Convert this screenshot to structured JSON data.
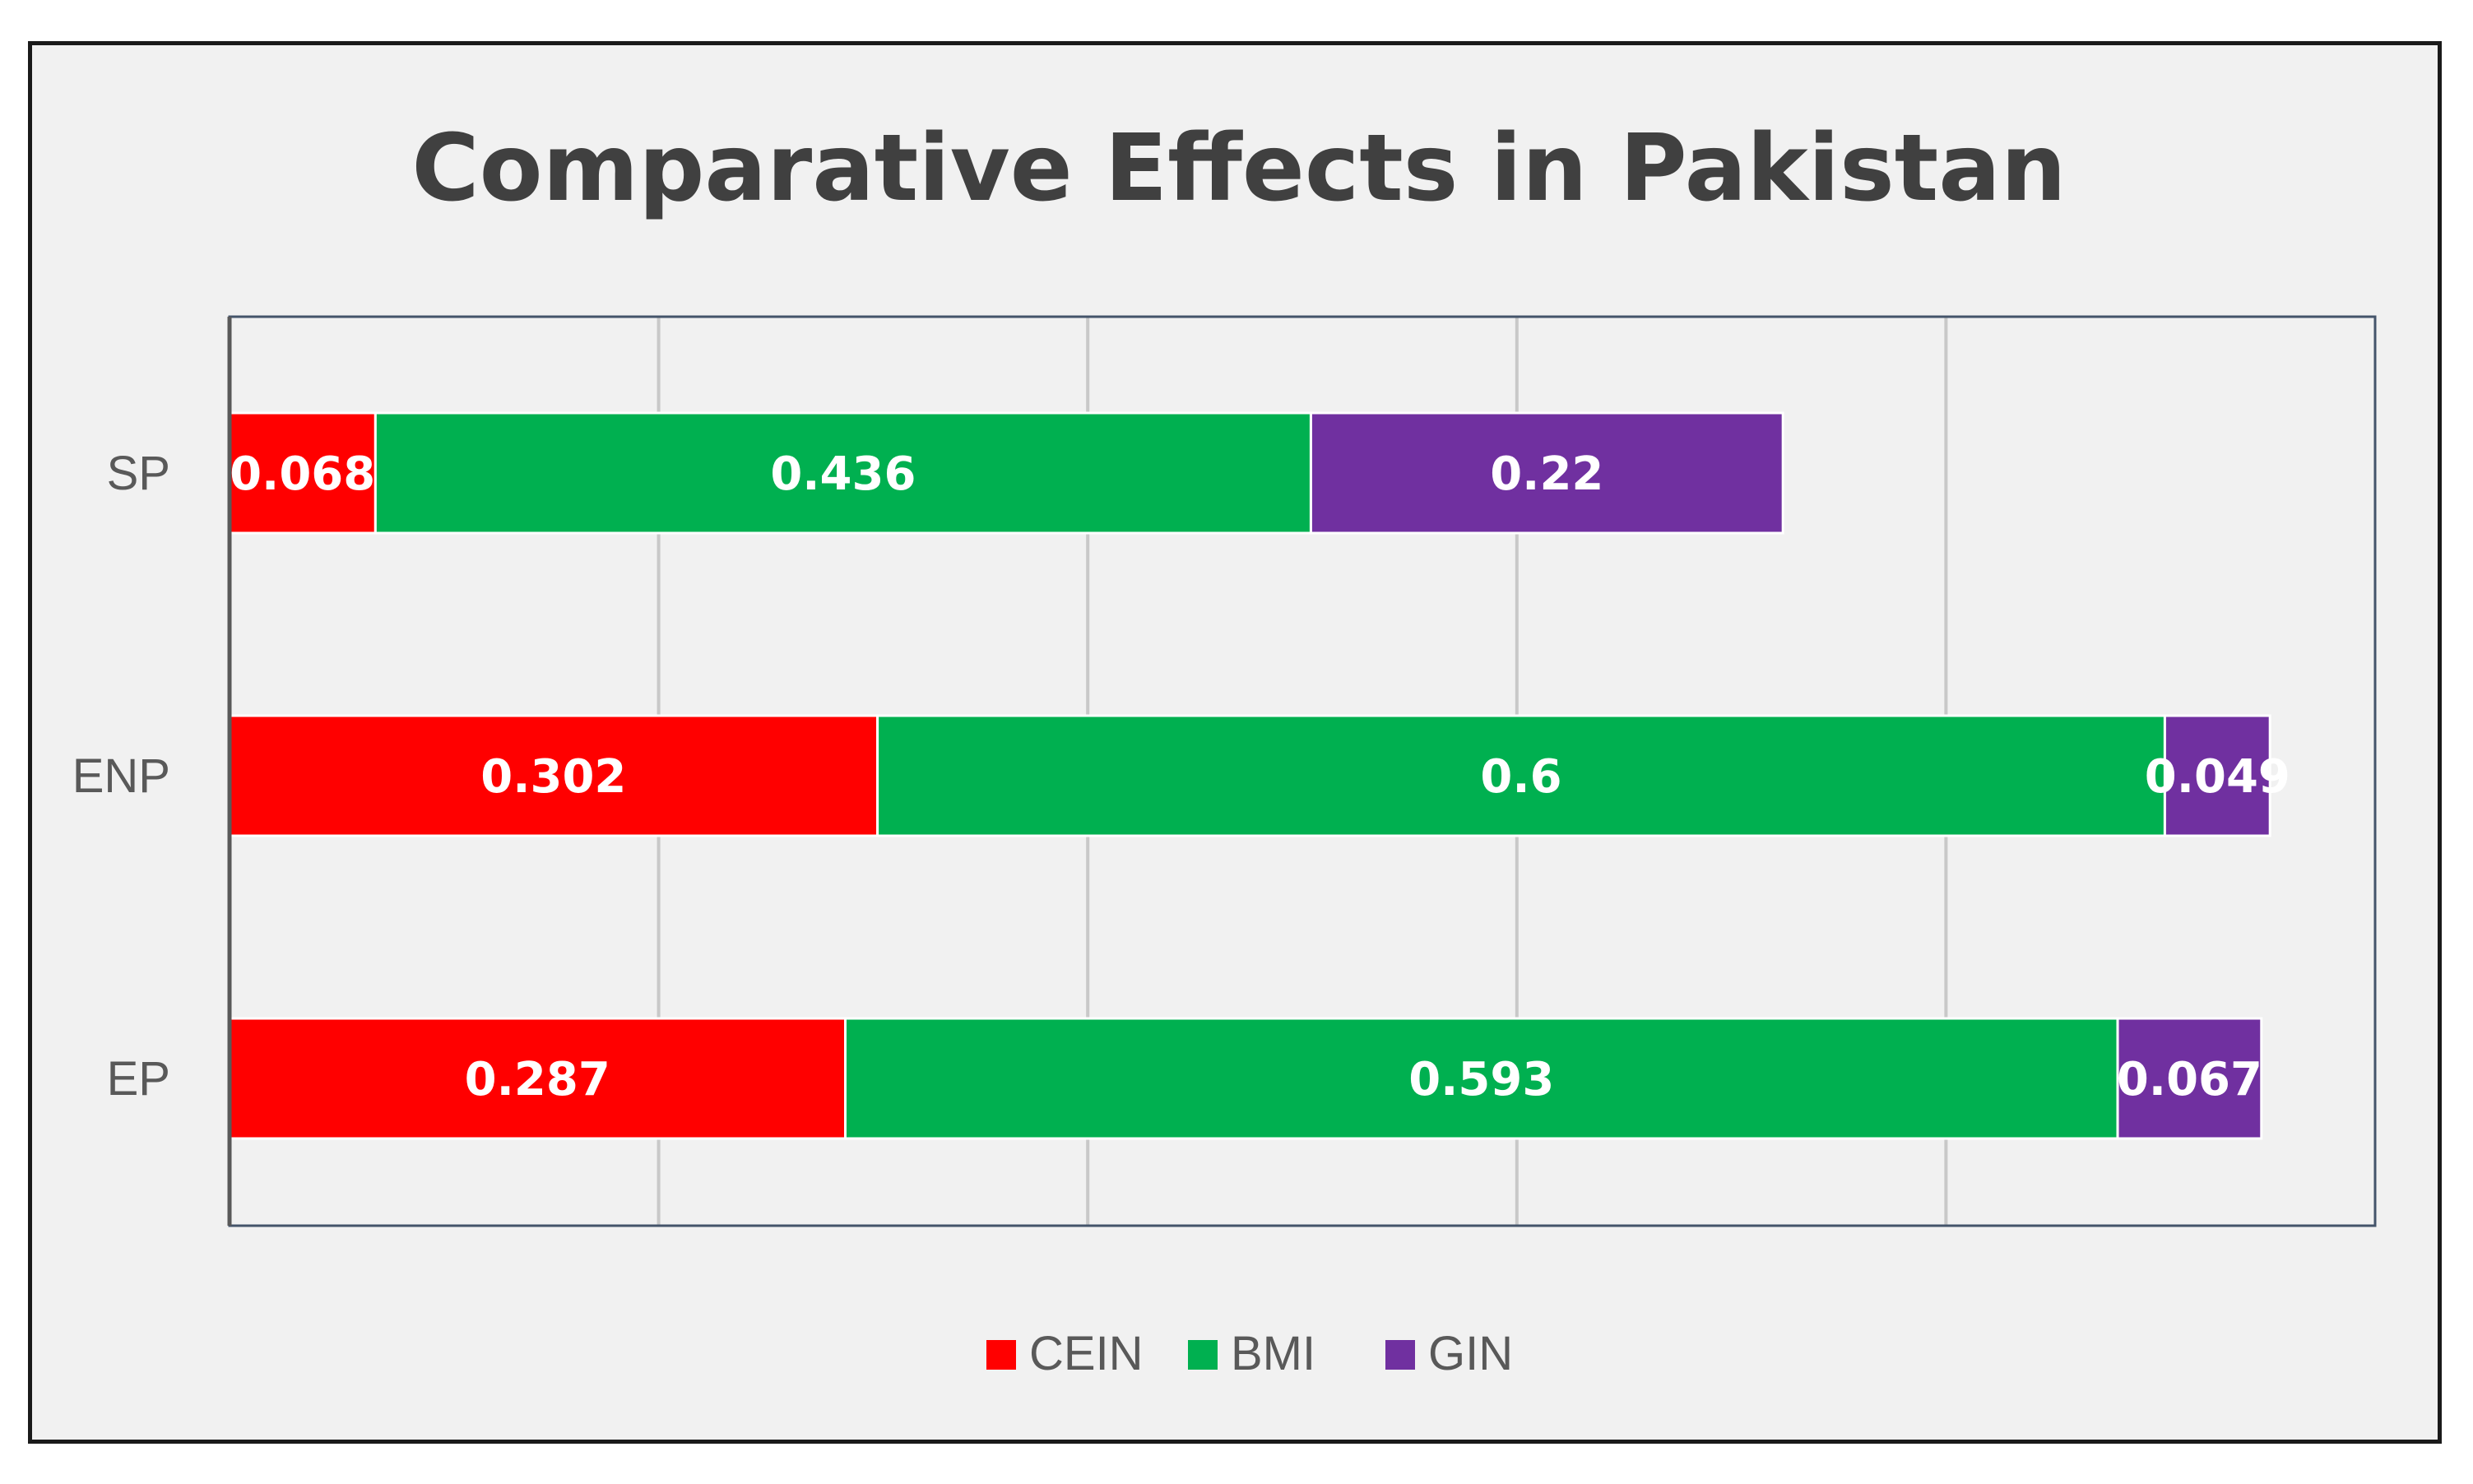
{
  "chart_data": {
    "type": "bar",
    "orientation": "horizontal",
    "stacked": true,
    "title": "Comparative Effects in Pakistan",
    "categories": [
      "SP",
      "ENP",
      "EP"
    ],
    "series": [
      {
        "name": "CEIN",
        "color": "#ff0000",
        "values": [
          0.068,
          0.302,
          0.287
        ]
      },
      {
        "name": "BMI",
        "color": "#00b050",
        "values": [
          0.436,
          0.6,
          0.593
        ]
      },
      {
        "name": "GIN",
        "color": "#7030a0",
        "values": [
          0.22,
          0.049,
          0.067
        ]
      }
    ],
    "data_labels": [
      [
        "0.068",
        "0.302",
        "0.287"
      ],
      [
        "0.436",
        "0.6",
        "0.593"
      ],
      [
        "0.22",
        "0.049",
        "0.067"
      ]
    ],
    "xlim": [
      0,
      1
    ],
    "xlabel": "",
    "ylabel": "",
    "grid": true,
    "legend_position": "bottom"
  }
}
